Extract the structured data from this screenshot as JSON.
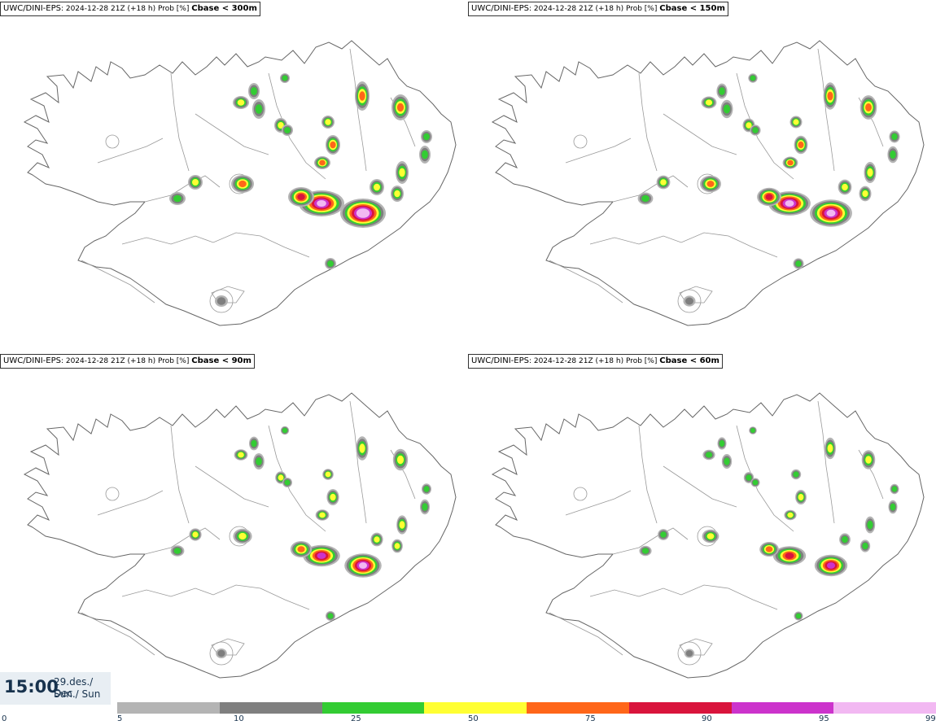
{
  "panels": [
    {
      "model": "UWC/DINI-EPS",
      "run": "2024-12-28 21Z (+18 h) Prob [%]",
      "threshold": "Cbase < 300m",
      "level": 1.0
    },
    {
      "model": "UWC/DINI-EPS",
      "run": "2024-12-28 21Z (+18 h) Prob [%]",
      "threshold": "Cbase < 150m",
      "level": 0.92
    },
    {
      "model": "UWC/DINI-EPS",
      "run": "2024-12-28 21Z (+18 h) Prob [%]",
      "threshold": "Cbase < 90m",
      "level": 0.8
    },
    {
      "model": "UWC/DINI-EPS",
      "run": "2024-12-28 21Z (+18 h) Prob [%]",
      "threshold": "Cbase < 60m",
      "level": 0.7
    }
  ],
  "time": {
    "hour": "15:00",
    "date": "29.des./ Dec",
    "day": "Sun./ Sun"
  },
  "legend": {
    "ticks": [
      "0",
      "5",
      "10",
      "25",
      "50",
      "75",
      "90",
      "95",
      "99"
    ],
    "colors": [
      "#b4b4b4",
      "#7f7f7f",
      "#33cc33",
      "#ffff33",
      "#ff6619",
      "#d9143c",
      "#cc33cc",
      "#f2b8f2"
    ]
  },
  "colors": {
    "coast": "#666666",
    "roads": "#999999",
    "white": "#ffffff"
  }
}
